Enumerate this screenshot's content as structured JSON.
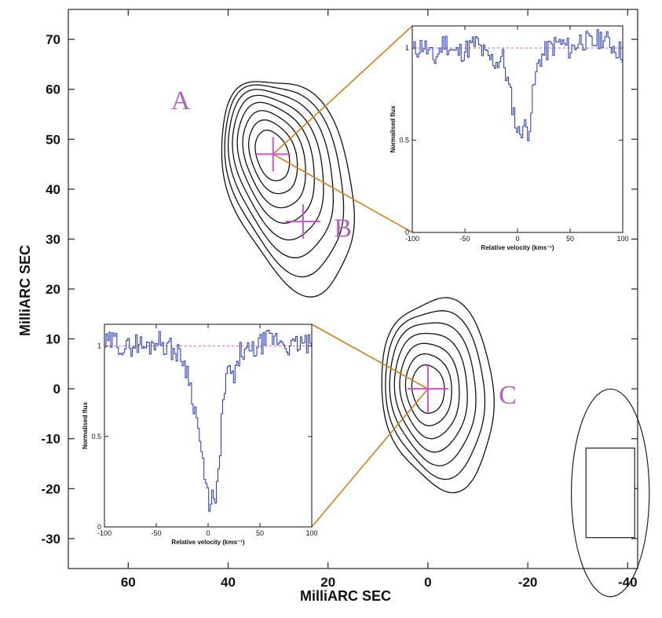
{
  "chart_data": {
    "type": "contour",
    "xlabel": "MilliARC SEC",
    "ylabel": "MilliARC SEC",
    "x_ticks": [
      "60",
      "40",
      "20",
      "0",
      "-20",
      "-40"
    ],
    "y_ticks": [
      "70",
      "60",
      "50",
      "40",
      "30",
      "20",
      "10",
      "0",
      "-10",
      "-20",
      "-30"
    ],
    "xlim": [
      72,
      -42
    ],
    "ylim": [
      -36,
      76
    ],
    "components": [
      {
        "label": "A",
        "label_x": 49.5,
        "label_y": 56,
        "cross_x": 31,
        "cross_y": 47
      },
      {
        "label": "B",
        "label_x": 17,
        "label_y": 30.5,
        "cross_x": 25,
        "cross_y": 33.5
      },
      {
        "label": "C",
        "label_x": -16,
        "label_y": -3,
        "cross_x": 0,
        "cross_y": 0
      }
    ],
    "contour_groups": [
      {
        "name": "A",
        "center": [
          31.5,
          46.5
        ],
        "levels": 8
      },
      {
        "name": "C",
        "center": [
          0,
          0
        ],
        "levels": 7
      }
    ],
    "beam": {
      "center": [
        -37,
        -21
      ],
      "width": 6,
      "height": 16
    },
    "spectra": [
      {
        "component": "A",
        "xlabel": "Relative velocity (kms⁻¹)",
        "ylabel": "Normalised flux",
        "x_ticks": [
          "-100",
          "-50",
          "0",
          "50",
          "100"
        ],
        "y_ticks": [
          "0",
          "0.5",
          "1"
        ],
        "xlim": [
          -100,
          100
        ],
        "ylim": [
          0,
          1.12
        ],
        "continuum": 1.0,
        "x": [
          -100,
          -90,
          -80,
          -70,
          -60,
          -50,
          -40,
          -30,
          -20,
          -15,
          -10,
          -5,
          0,
          5,
          10,
          15,
          20,
          30,
          40,
          50,
          60,
          70,
          80,
          90,
          100
        ],
        "flux": [
          0.98,
          1.02,
          0.93,
          1.04,
          0.97,
          0.99,
          1.03,
          0.95,
          0.92,
          0.96,
          0.82,
          0.68,
          0.53,
          0.58,
          0.55,
          0.79,
          0.94,
          1.0,
          1.03,
          0.99,
          1.05,
          1.02,
          1.06,
          1.01,
          0.97
        ]
      },
      {
        "component": "C",
        "xlabel": "Relative velocity (kms⁻¹)",
        "ylabel": "Normalised flux",
        "x_ticks": [
          "-100",
          "-50",
          "0",
          "50",
          "100"
        ],
        "y_ticks": [
          "0",
          "0.5",
          "1"
        ],
        "xlim": [
          -100,
          100
        ],
        "ylim": [
          0,
          1.12
        ],
        "continuum": 1.0,
        "x": [
          -100,
          -90,
          -80,
          -70,
          -60,
          -50,
          -40,
          -30,
          -25,
          -20,
          -15,
          -10,
          -5,
          0,
          3,
          6,
          9,
          12,
          15,
          20,
          25,
          30,
          40,
          50,
          60,
          70,
          80,
          90,
          100
        ],
        "flux": [
          1.01,
          1.03,
          0.98,
          1.02,
          0.99,
          1.04,
          1.0,
          0.96,
          0.93,
          0.85,
          0.7,
          0.55,
          0.3,
          0.13,
          0.18,
          0.11,
          0.24,
          0.55,
          0.75,
          0.88,
          0.8,
          0.97,
          0.96,
          1.01,
          1.04,
          1.03,
          0.99,
          1.02,
          1.0
        ]
      }
    ]
  },
  "colors": {
    "marker": "#cc55cc",
    "leader": "#d08020",
    "spectrum": "#3344bb",
    "continuum": "#e060a0"
  }
}
